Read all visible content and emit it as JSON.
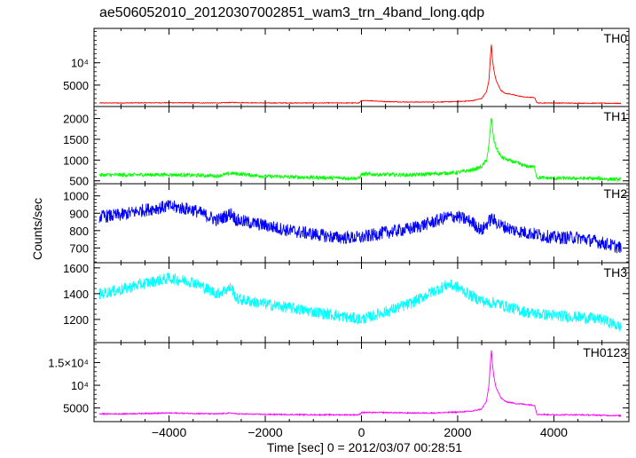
{
  "chart_data": {
    "type": "line",
    "title": "ae506052010_20120307002851_wam3_trn_4band_long.qdp",
    "xlabel": "Time [sec] 0 = 2012/03/07 00:28:51",
    "ylabel": "Counts/sec",
    "xlim": [
      -5560,
      5560
    ],
    "x_ticks": [
      -4000,
      -2000,
      0,
      2000,
      4000
    ],
    "x_tick_labels": [
      "−4000",
      "−2000",
      "0",
      "2000",
      "4000"
    ],
    "grid": false,
    "panels": [
      {
        "name": "TH0",
        "color": "#ff0000",
        "ylim": [
          200,
          17700
        ],
        "yticks": [
          5000,
          10000
        ],
        "ytick_labels": [
          "5000",
          "10⁴"
        ],
        "x": [
          -5450,
          -5000,
          -4000,
          -3000,
          -2700,
          -2000,
          -1000,
          -50,
          0,
          200,
          500,
          1000,
          1500,
          2000,
          2300,
          2500,
          2600,
          2650,
          2700,
          2720,
          2750,
          2800,
          2900,
          3000,
          3100,
          3200,
          3400,
          3600,
          3650,
          4000,
          4500,
          5000,
          5400
        ],
        "y": [
          1000,
          1000,
          1050,
          1000,
          1100,
          1000,
          1000,
          1000,
          1500,
          1500,
          1300,
          1200,
          1200,
          1300,
          1500,
          2000,
          3500,
          6000,
          14500,
          11000,
          8500,
          6000,
          3800,
          3100,
          3000,
          2700,
          2300,
          2200,
          1000,
          1000,
          950,
          950,
          900
        ],
        "noise": 80
      },
      {
        "name": "TH1",
        "color": "#00ff00",
        "ylim": [
          430,
          2290
        ],
        "yticks": [
          500,
          1000,
          1500,
          2000
        ],
        "ytick_labels": [
          "500",
          "1000",
          "1500",
          "2000"
        ],
        "x": [
          -5450,
          -4000,
          -3000,
          -2700,
          -2000,
          -1000,
          -50,
          0,
          500,
          1000,
          2000,
          2300,
          2500,
          2600,
          2650,
          2700,
          2720,
          2750,
          2800,
          2900,
          3000,
          3200,
          3400,
          3600,
          3650,
          4000,
          4500,
          5000,
          5400
        ],
        "y": [
          640,
          650,
          620,
          680,
          610,
          580,
          560,
          660,
          650,
          640,
          700,
          760,
          840,
          1000,
          1350,
          2050,
          1800,
          1500,
          1300,
          1080,
          1020,
          940,
          860,
          830,
          580,
          560,
          560,
          550,
          530
        ],
        "noise": 45
      },
      {
        "name": "TH2",
        "color": "#0000ff",
        "ylim": [
          615,
          1070
        ],
        "yticks": [
          700,
          800,
          900,
          1000
        ],
        "ytick_labels": [
          "700",
          "800",
          "900",
          "1000"
        ],
        "x": [
          -5450,
          -5000,
          -4500,
          -4000,
          -3500,
          -3000,
          -2700,
          -2600,
          -2000,
          -1500,
          -1000,
          -500,
          0,
          500,
          1000,
          1500,
          1800,
          2000,
          2300,
          2500,
          2700,
          2900,
          3200,
          3600,
          4000,
          4500,
          5000,
          5400
        ],
        "y": [
          880,
          890,
          920,
          940,
          920,
          860,
          900,
          860,
          830,
          800,
          780,
          760,
          760,
          790,
          810,
          850,
          880,
          880,
          850,
          800,
          870,
          830,
          800,
          780,
          760,
          760,
          730,
          700
        ],
        "noise": 38
      },
      {
        "name": "TH3",
        "color": "#00ffff",
        "ylim": [
          1020,
          1640
        ],
        "yticks": [
          1200,
          1400,
          1600
        ],
        "ytick_labels": [
          "1200",
          "1400",
          "1600"
        ],
        "x": [
          -5450,
          -5000,
          -4500,
          -4000,
          -3500,
          -3000,
          -2700,
          -2600,
          -2000,
          -1500,
          -1000,
          -500,
          0,
          500,
          1000,
          1500,
          1800,
          2000,
          2300,
          2600,
          2800,
          3000,
          3500,
          4000,
          4500,
          5000,
          5400
        ],
        "y": [
          1400,
          1430,
          1480,
          1520,
          1490,
          1400,
          1450,
          1360,
          1320,
          1290,
          1260,
          1230,
          1200,
          1260,
          1320,
          1420,
          1470,
          1450,
          1380,
          1330,
          1330,
          1300,
          1250,
          1230,
          1220,
          1200,
          1140
        ],
        "noise": 45
      },
      {
        "name": "TH0123",
        "color": "#ff00ff",
        "ylim": [
          2000,
          19400
        ],
        "yticks": [
          5000,
          10000,
          15000
        ],
        "ytick_labels": [
          "5000",
          "10⁴",
          "1.5×10⁴"
        ],
        "x": [
          -5450,
          -5000,
          -4000,
          -3000,
          -2700,
          -2600,
          -2000,
          -1000,
          -50,
          0,
          500,
          1000,
          1500,
          2000,
          2300,
          2500,
          2600,
          2650,
          2700,
          2720,
          2750,
          2800,
          2900,
          3000,
          3100,
          3200,
          3400,
          3600,
          3650,
          4000,
          4500,
          5000,
          5400
        ],
        "y": [
          3700,
          3700,
          3900,
          3700,
          3900,
          3700,
          3600,
          3500,
          3500,
          4000,
          4000,
          3900,
          3900,
          4100,
          4300,
          4800,
          6500,
          10000,
          18000,
          15000,
          12000,
          9500,
          7200,
          6400,
          6200,
          6000,
          5800,
          5600,
          3600,
          3500,
          3500,
          3400,
          3300
        ],
        "noise": 130
      }
    ]
  }
}
